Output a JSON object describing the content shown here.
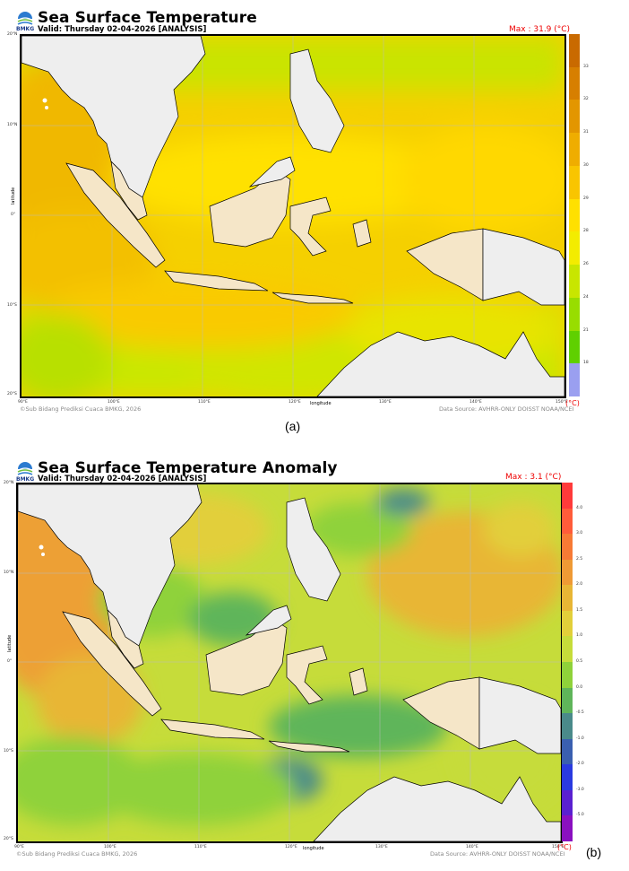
{
  "logo_text": "BMKG",
  "panels": [
    {
      "title": "Sea Surface Temperature",
      "subtitle": "Valid: Thursday 02-04-2026 [ANALYSIS]",
      "max_label": "Max : 31.9 (°C)",
      "lat_labels": [
        "20°N",
        "10°N",
        "0°",
        "10°S",
        "20°S"
      ],
      "lon_labels": [
        "90°E",
        "100°E",
        "110°E",
        "120°E",
        "130°E",
        "140°E",
        "150°E"
      ],
      "x_axis_label": "longitude",
      "y_axis_label": "latitude",
      "credit": "©Sub Bidang Prediksi Cuaca BMKG, 2026",
      "source": "Data Source: AVHRR-ONLY DOISST NOAA/NCEI",
      "unit": "(°C)",
      "colorbar_ticks": [
        "33",
        "32",
        "31",
        "30",
        "29",
        "28",
        "26",
        "24",
        "21",
        "18"
      ],
      "colorbar_colors": [
        "#c96a00",
        "#d77f00",
        "#e39600",
        "#efad00",
        "#f9c500",
        "#ffe000",
        "#f3ec00",
        "#c8e600",
        "#98dd00",
        "#5fd000",
        "#9a9ff0"
      ],
      "caption": "(a)"
    },
    {
      "title": "Sea Surface Temperature Anomaly",
      "subtitle": "Valid: Thursday 02-04-2026 [ANALYSIS]",
      "max_label": "Max : 3.1 (°C)",
      "lat_labels": [
        "20°N",
        "10°N",
        "0°",
        "10°S",
        "20°S"
      ],
      "lon_labels": [
        "90°E",
        "100°E",
        "110°E",
        "120°E",
        "130°E",
        "140°E",
        "150°E"
      ],
      "x_axis_label": "longitude",
      "y_axis_label": "latitude",
      "credit": "©Sub Bidang Prediksi Cuaca BMKG, 2026",
      "source": "Data Source: AVHRR-ONLY DOISST NOAA/NCEI",
      "unit": "(°C)",
      "colorbar_ticks": [
        "4.0",
        "3.0",
        "2.5",
        "2.0",
        "1.5",
        "1.0",
        "0.5",
        "0.0",
        "-0.5",
        "-1.0",
        "-2.0",
        "-3.0",
        "-5.0"
      ],
      "colorbar_colors": [
        "#ff3a3a",
        "#ff5c3a",
        "#f77a35",
        "#ef9a35",
        "#e8b635",
        "#e2cf3a",
        "#c6dc3a",
        "#8fd23a",
        "#5fb55a",
        "#4a8a8a",
        "#3a5fb0",
        "#2a3ae0",
        "#5a20d0",
        "#8a10c0"
      ],
      "caption": "(b)"
    }
  ]
}
